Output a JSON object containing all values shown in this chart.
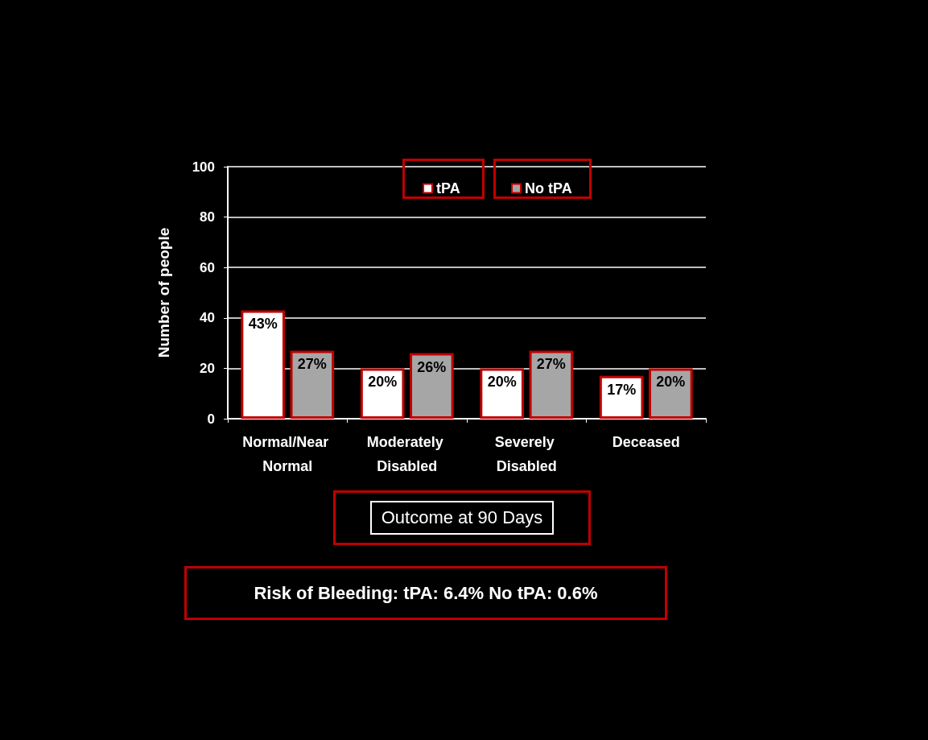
{
  "chart_data": {
    "type": "bar",
    "xlabel": "Outcome at 90 Days",
    "ylabel": "Number of people",
    "categories": [
      "Normal/Near Normal",
      "Moderately Disabled",
      "Severely Disabled",
      "Deceased"
    ],
    "series": [
      {
        "name": "tPA",
        "color": "#ffffff",
        "values": [
          43,
          20,
          20,
          17
        ],
        "value_labels": [
          "43%",
          "20%",
          "20%",
          "17%"
        ]
      },
      {
        "name": "No tPA",
        "color": "#a6a6a6",
        "values": [
          27,
          26,
          27,
          20
        ],
        "value_labels": [
          "27%",
          "26%",
          "27%",
          "20%"
        ]
      }
    ],
    "ylim": [
      0,
      100
    ],
    "yticks": [
      0,
      20,
      40,
      60,
      80,
      100
    ],
    "grid": "y",
    "legend": "top",
    "annotations": [
      "Risk of Bleeding: tPA: 6.4%  No tPA: 0.6%"
    ]
  }
}
